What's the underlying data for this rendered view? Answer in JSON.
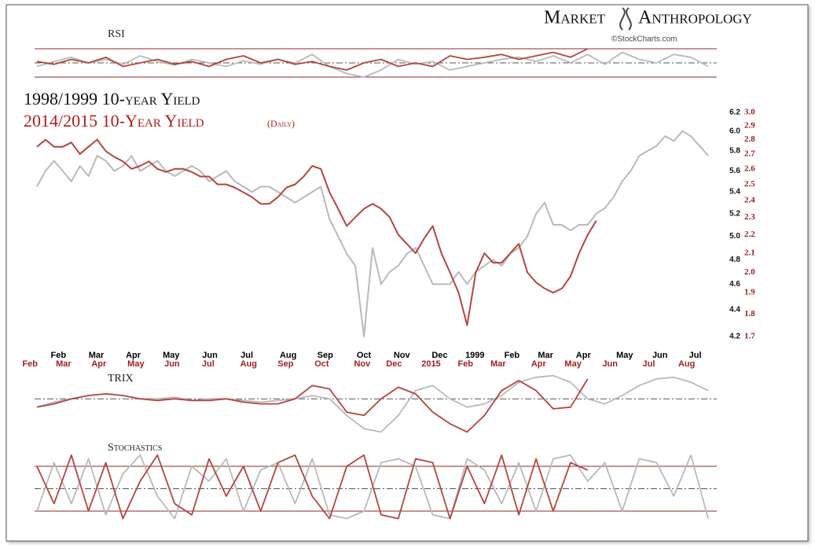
{
  "header": {
    "brand_left": "Market",
    "brand_right": "Anthropology",
    "credit": "©StockCharts.com"
  },
  "chart_data": [
    {
      "type": "line",
      "title": "1998/1999 10-year Yield",
      "subtitle": "2014/2015  10-Year Yield",
      "annotation": "(Daily)",
      "log_scale": true,
      "xlim": [
        0,
        80
      ],
      "ylim": [
        4.2,
        6.2
      ],
      "y2lim": [
        1.7,
        3.0
      ],
      "yticks": [
        {
          "value": 6.2,
          "label": "6.2"
        },
        {
          "value": 6,
          "label": "6.0"
        },
        5.8,
        5.6,
        5.4,
        5.2,
        {
          "value": 5,
          "label": "5.0"
        },
        4.8,
        4.6,
        4.4,
        4.2
      ],
      "y2ticks": [
        {
          "value": 3,
          "label": "3.0"
        },
        2.9,
        2.8,
        2.7,
        2.6,
        2.5,
        2.4,
        2.3,
        2.2,
        2.1,
        {
          "value": 2,
          "label": "2.0"
        },
        1.9,
        1.8,
        1.7
      ],
      "xticks": [
        {
          "value": 3.5,
          "label": "Feb"
        },
        {
          "value": 7.9,
          "label": "Mar"
        },
        {
          "value": 12.2,
          "label": "Apr"
        },
        {
          "value": 16.6,
          "label": "May"
        },
        {
          "value": 21.1,
          "label": "Jun"
        },
        {
          "value": 25.4,
          "label": "Jul"
        },
        {
          "value": 30.2,
          "label": "Aug"
        },
        {
          "value": 34.5,
          "label": "Sep"
        },
        {
          "value": 39.0,
          "label": "Oct"
        },
        {
          "value": 43.4,
          "label": "Nov"
        },
        {
          "value": 47.8,
          "label": "Dec"
        },
        {
          "value": 51.9,
          "label": "1999"
        },
        {
          "value": 56.2,
          "label": "Feb"
        },
        {
          "value": 60.1,
          "label": "Mar"
        },
        {
          "value": 64.5,
          "label": "Apr"
        },
        {
          "value": 69.3,
          "label": "May"
        },
        {
          "value": 73.4,
          "label": "Jun"
        },
        {
          "value": 77.5,
          "label": "Jul"
        }
      ],
      "x2ticks": [
        {
          "value": 0.2,
          "label": "Feb"
        },
        {
          "value": 4.1,
          "label": "Mar"
        },
        {
          "value": 8.2,
          "label": "Apr"
        },
        {
          "value": 12.5,
          "label": "May"
        },
        {
          "value": 16.7,
          "label": "Jun"
        },
        {
          "value": 20.9,
          "label": "Jul"
        },
        {
          "value": 25.6,
          "label": "Aug"
        },
        {
          "value": 29.9,
          "label": "Sep"
        },
        {
          "value": 34.1,
          "label": "Oct"
        },
        {
          "value": 38.8,
          "label": "Nov"
        },
        {
          "value": 42.5,
          "label": "Dec"
        },
        {
          "value": 46.8,
          "label": "2015"
        },
        {
          "value": 50.8,
          "label": "Feb"
        },
        {
          "value": 54.6,
          "label": "Mar"
        },
        {
          "value": 59.3,
          "label": "Apr"
        },
        {
          "value": 63.3,
          "label": "May"
        },
        {
          "value": 67.6,
          "label": "Jun"
        },
        {
          "value": 72.1,
          "label": "Jul"
        },
        {
          "value": 76.5,
          "label": "Aug"
        }
      ],
      "x": [
        1,
        2,
        3,
        4,
        5,
        6,
        7,
        8,
        9,
        10,
        11,
        12,
        13,
        14,
        15,
        16,
        17,
        18,
        19,
        20,
        21,
        22,
        23,
        24,
        25,
        26,
        27,
        28,
        29,
        30,
        31,
        32,
        33,
        34,
        35,
        36,
        37,
        38,
        39,
        40,
        41,
        42,
        43,
        44,
        45,
        46,
        47,
        48,
        49,
        50,
        51,
        52,
        53,
        54,
        55,
        56,
        57,
        58,
        59,
        60,
        61,
        62,
        63,
        64,
        65,
        66,
        67,
        68,
        69,
        70,
        71,
        72,
        73,
        74,
        75,
        76,
        77,
        78,
        79
      ],
      "series": [
        {
          "color": "#b9b9b9",
          "axis": "y",
          "values": [
            5.45,
            5.6,
            5.7,
            5.6,
            5.5,
            5.65,
            5.55,
            5.75,
            5.7,
            5.6,
            5.65,
            5.75,
            5.6,
            5.65,
            5.7,
            5.6,
            5.55,
            5.6,
            5.65,
            5.6,
            5.5,
            5.55,
            5.6,
            5.5,
            5.45,
            5.4,
            5.45,
            5.45,
            5.4,
            5.35,
            5.3,
            5.35,
            5.4,
            5.45,
            5.15,
            5.0,
            4.85,
            4.75,
            4.2,
            4.9,
            4.6,
            4.7,
            4.75,
            4.85,
            4.9,
            4.75,
            4.6,
            4.6,
            4.6,
            4.7,
            4.6,
            4.7,
            4.75,
            4.8,
            4.75,
            4.85,
            4.9,
            5.0,
            5.2,
            5.3,
            5.1,
            5.1,
            5.05,
            5.1,
            5.1,
            5.2,
            5.25,
            5.35,
            5.5,
            5.6,
            5.75,
            5.8,
            5.85,
            5.95,
            5.9,
            6.0,
            5.95,
            5.85,
            5.75
          ]
        },
        {
          "color": "#b5443f",
          "axis": "y2",
          "values": [
            2.75,
            2.8,
            2.75,
            2.75,
            2.78,
            2.7,
            2.75,
            2.8,
            2.72,
            2.68,
            2.65,
            2.6,
            2.62,
            2.65,
            2.6,
            2.58,
            2.6,
            2.6,
            2.58,
            2.55,
            2.55,
            2.5,
            2.5,
            2.48,
            2.45,
            2.42,
            2.38,
            2.38,
            2.42,
            2.48,
            2.5,
            2.55,
            2.62,
            2.6,
            2.45,
            2.35,
            2.25,
            2.3,
            2.35,
            2.38,
            2.35,
            2.3,
            2.2,
            2.15,
            2.1,
            2.18,
            2.25,
            2.1,
            2.0,
            1.9,
            1.75,
            2.0,
            2.1,
            2.05,
            2.05,
            2.1,
            2.15,
            2.0,
            1.95,
            1.92,
            1.9,
            1.92,
            1.98,
            2.1,
            2.2,
            2.28,
            null,
            null,
            null,
            null,
            null,
            null,
            null,
            null,
            null,
            null,
            null,
            null,
            null
          ]
        }
      ]
    },
    {
      "type": "line",
      "title": "RSI",
      "xlim": [
        0,
        80
      ],
      "ylim": [
        20,
        80
      ],
      "yticks": [
        30,
        50,
        70
      ],
      "x": [
        1,
        3,
        5,
        7,
        9,
        11,
        13,
        15,
        17,
        19,
        21,
        23,
        25,
        27,
        29,
        31,
        33,
        35,
        37,
        39,
        41,
        43,
        45,
        47,
        49,
        51,
        53,
        55,
        57,
        59,
        61,
        63,
        65,
        67,
        69,
        71,
        73,
        75,
        77,
        79
      ],
      "series": [
        {
          "color": "#b9b9b9",
          "values": [
            45,
            52,
            58,
            50,
            55,
            48,
            60,
            52,
            47,
            55,
            50,
            45,
            53,
            48,
            55,
            50,
            62,
            45,
            35,
            30,
            40,
            55,
            48,
            52,
            40,
            45,
            50,
            55,
            58,
            52,
            60,
            50,
            62,
            48,
            65,
            55,
            50,
            62,
            58,
            45
          ]
        },
        {
          "color": "#b5443f",
          "values": [
            52,
            48,
            55,
            50,
            58,
            45,
            50,
            55,
            48,
            52,
            45,
            55,
            60,
            50,
            55,
            48,
            52,
            45,
            40,
            50,
            55,
            45,
            50,
            45,
            60,
            55,
            58,
            62,
            55,
            60,
            65,
            58,
            70,
            null,
            null,
            null,
            null,
            null,
            null,
            null
          ]
        }
      ]
    },
    {
      "type": "line",
      "title": "TRIX",
      "xlim": [
        0,
        80
      ],
      "ylim": [
        -0.25,
        0.2
      ],
      "yticks": [
        0
      ],
      "x": [
        1,
        3,
        5,
        7,
        9,
        11,
        13,
        15,
        17,
        19,
        21,
        23,
        25,
        27,
        29,
        31,
        33,
        35,
        37,
        39,
        41,
        43,
        45,
        47,
        49,
        51,
        53,
        55,
        57,
        59,
        61,
        63,
        65,
        67,
        69,
        71,
        73,
        75,
        77,
        79
      ],
      "series": [
        {
          "color": "#b9b9b9",
          "values": [
            -0.05,
            -0.02,
            0.0,
            0.02,
            0.03,
            0.02,
            0.0,
            0.0,
            0.01,
            -0.01,
            0.0,
            0.0,
            -0.01,
            -0.02,
            -0.01,
            0.0,
            0.02,
            0.0,
            -0.1,
            -0.18,
            -0.2,
            -0.1,
            0.05,
            0.08,
            0.0,
            -0.05,
            -0.03,
            0.02,
            0.1,
            0.13,
            0.14,
            0.1,
            0.0,
            -0.03,
            0.02,
            0.08,
            0.12,
            0.13,
            0.1,
            0.05
          ]
        },
        {
          "color": "#b5443f",
          "values": [
            -0.05,
            -0.03,
            0.0,
            0.02,
            0.03,
            0.02,
            0.0,
            -0.01,
            0.0,
            -0.01,
            -0.01,
            0.0,
            -0.02,
            -0.03,
            -0.03,
            0.0,
            0.08,
            0.06,
            -0.08,
            -0.1,
            0.0,
            0.07,
            0.03,
            -0.08,
            -0.15,
            -0.2,
            -0.1,
            0.05,
            0.11,
            0.05,
            -0.06,
            -0.05,
            0.12,
            null,
            null,
            null,
            null,
            null,
            null,
            null
          ]
        }
      ]
    },
    {
      "type": "line",
      "title": "Stochastics",
      "xlim": [
        0,
        80
      ],
      "ylim": [
        0,
        100
      ],
      "yticks": [
        20,
        50,
        80
      ],
      "x": [
        1,
        3,
        5,
        7,
        9,
        11,
        13,
        15,
        17,
        19,
        21,
        23,
        25,
        27,
        29,
        31,
        33,
        35,
        37,
        39,
        41,
        43,
        45,
        47,
        49,
        51,
        53,
        55,
        57,
        59,
        61,
        63,
        65,
        67,
        69,
        71,
        73,
        75,
        77,
        79
      ],
      "series": [
        {
          "color": "#b9b9b9",
          "values": [
            20,
            85,
            30,
            90,
            15,
            70,
            95,
            40,
            10,
            80,
            60,
            90,
            20,
            75,
            85,
            30,
            90,
            15,
            10,
            20,
            85,
            90,
            80,
            15,
            10,
            90,
            75,
            30,
            85,
            20,
            90,
            95,
            60,
            85,
            20,
            90,
            85,
            40,
            95,
            10
          ]
        },
        {
          "color": "#b5443f",
          "values": [
            80,
            30,
            95,
            20,
            85,
            10,
            60,
            95,
            30,
            15,
            90,
            40,
            80,
            20,
            85,
            95,
            40,
            10,
            80,
            95,
            15,
            10,
            90,
            85,
            10,
            80,
            30,
            95,
            15,
            90,
            20,
            85,
            75,
            null,
            null,
            null,
            null,
            null,
            null,
            null
          ]
        }
      ]
    }
  ]
}
